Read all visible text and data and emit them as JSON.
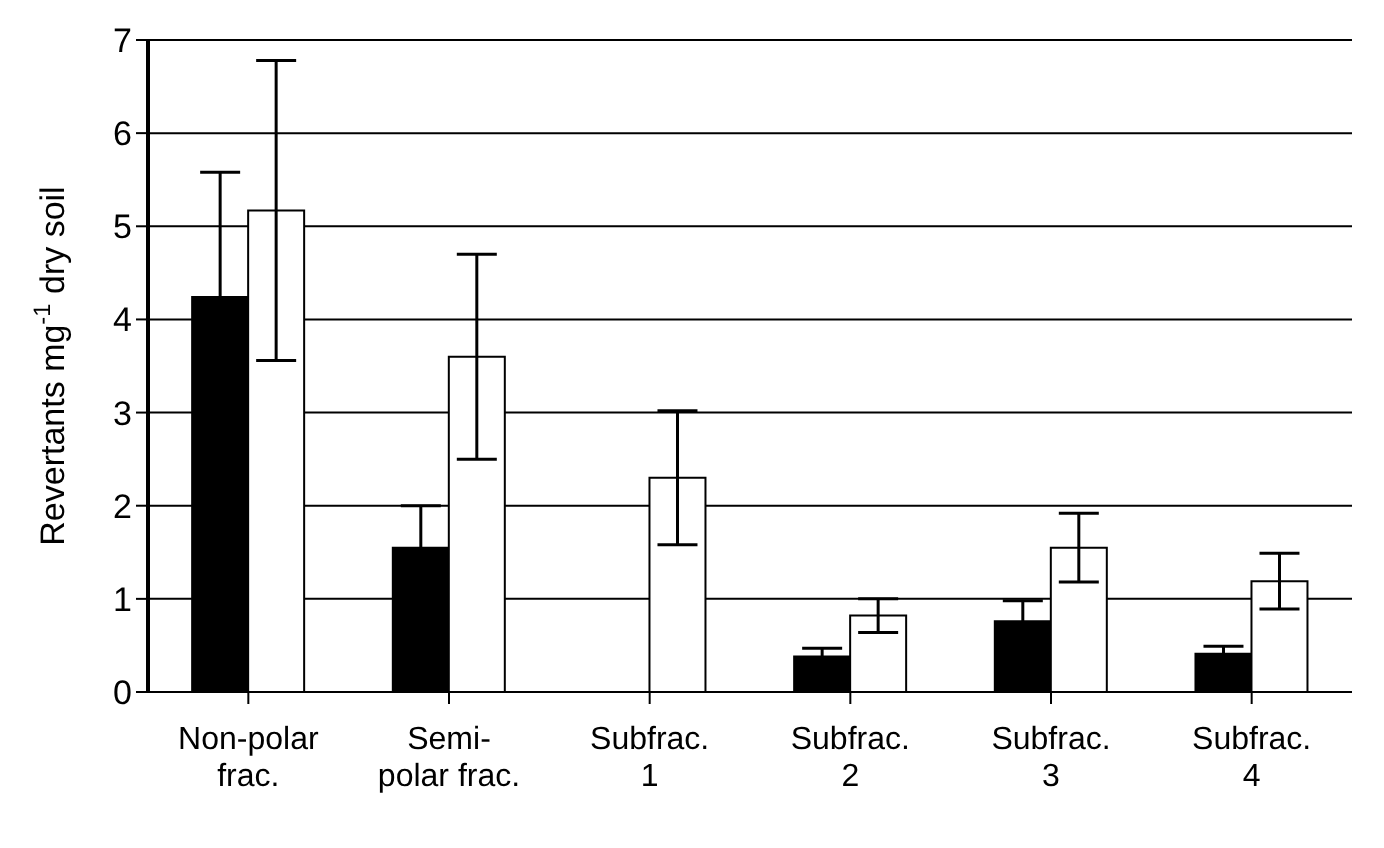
{
  "chart_data": {
    "type": "bar",
    "ylabel": "Revertants mg$^{-1}$ dry soil",
    "categories": [
      "Non-polar\nfrac.",
      "Semi-\npolar frac.",
      "Subfrac.\n1",
      "Subfrac.\n2",
      "Subfrac.\n3",
      "Subfrac.\n4"
    ],
    "series": [
      {
        "color": "#000000",
        "values": [
          4.24,
          1.55,
          null,
          0.38,
          0.76,
          0.41
        ],
        "errors": [
          1.34,
          0.45,
          null,
          0.09,
          0.22,
          0.08
        ]
      },
      {
        "color": "#ffffff",
        "values": [
          5.17,
          3.6,
          2.3,
          0.82,
          1.55,
          1.19
        ],
        "errors": [
          1.61,
          1.1,
          0.72,
          0.18,
          0.37,
          0.3
        ]
      }
    ],
    "ylim": [
      0,
      7
    ],
    "yticks": [
      0,
      1,
      2,
      3,
      4,
      5,
      6,
      7
    ],
    "grid": "y",
    "legend": false
  }
}
